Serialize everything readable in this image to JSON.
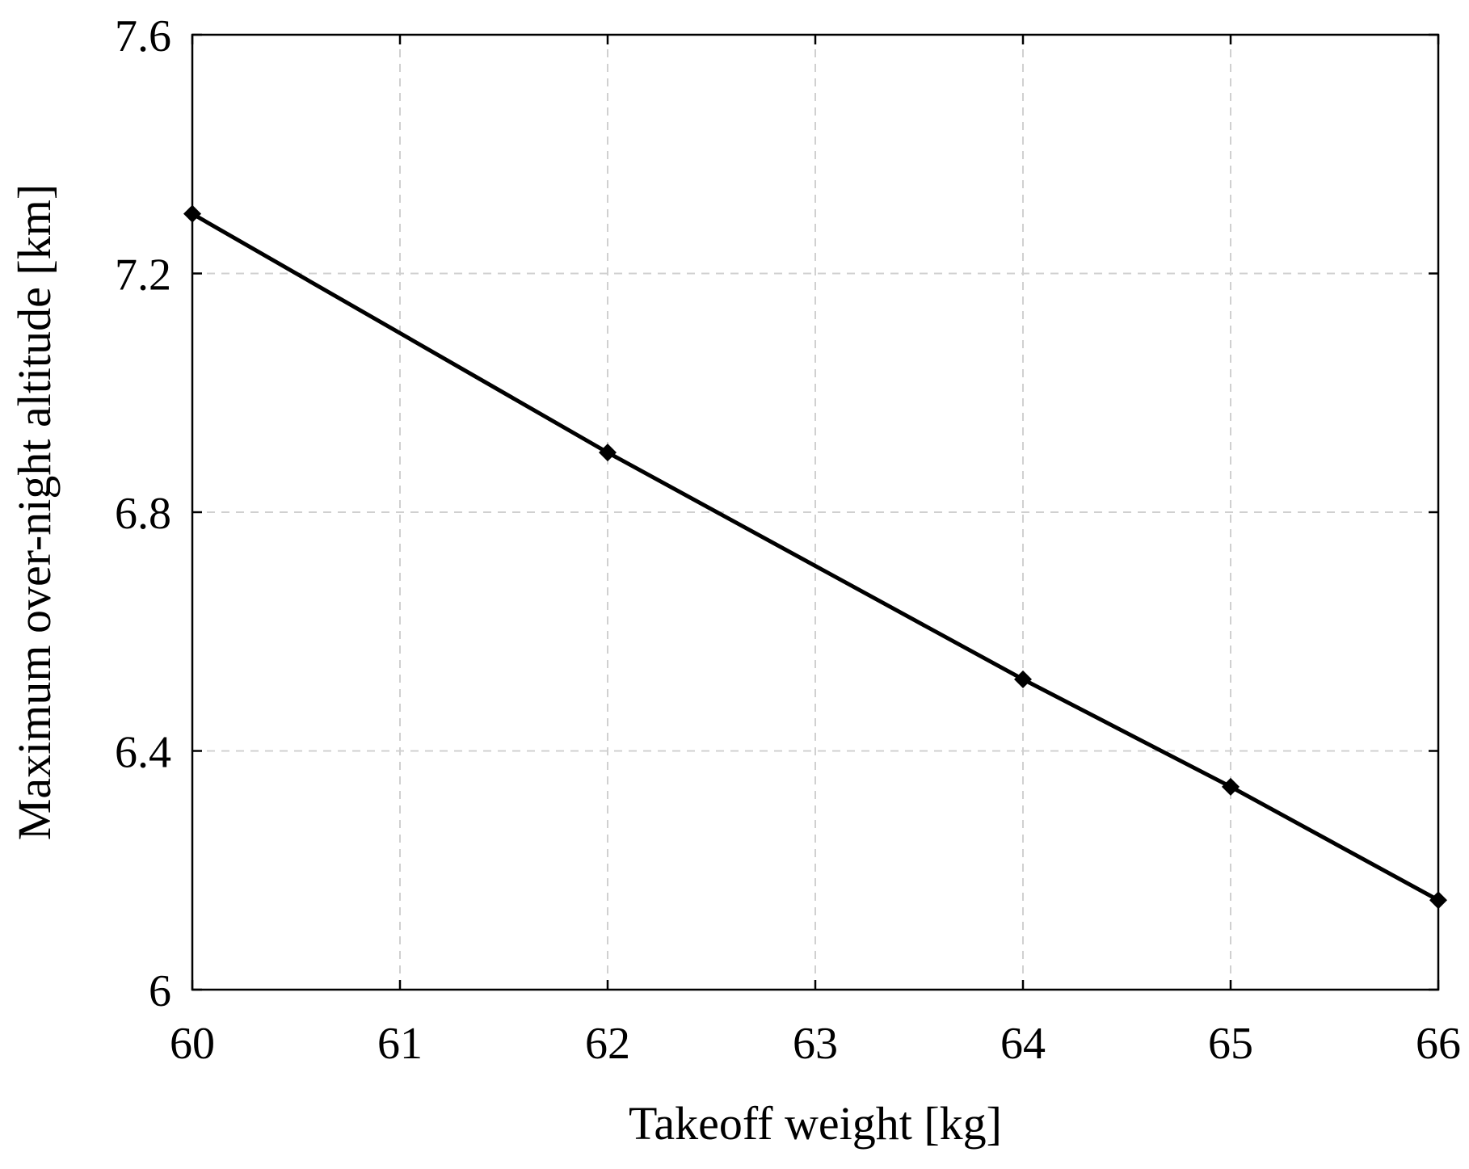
{
  "chart_data": {
    "type": "line",
    "title": "",
    "xlabel": "Takeoff weight [kg]",
    "ylabel": "Maximum over-night altitude [km]",
    "xlim": [
      60,
      66
    ],
    "ylim": [
      6,
      7.6
    ],
    "x_ticks": [
      60,
      61,
      62,
      63,
      64,
      65,
      66
    ],
    "y_ticks": [
      6,
      6.4,
      6.8,
      7.2,
      7.6
    ],
    "x_tick_labels": [
      "60",
      "61",
      "62",
      "63",
      "64",
      "65",
      "66"
    ],
    "y_tick_labels": [
      "6",
      "6.4",
      "6.8",
      "7.2",
      "7.6"
    ],
    "grid": true,
    "series": [
      {
        "marker": "diamond",
        "color": "#000000",
        "x": [
          60,
          62,
          64,
          65,
          66
        ],
        "y": [
          7.3,
          6.9,
          6.52,
          6.34,
          6.15
        ]
      }
    ]
  }
}
